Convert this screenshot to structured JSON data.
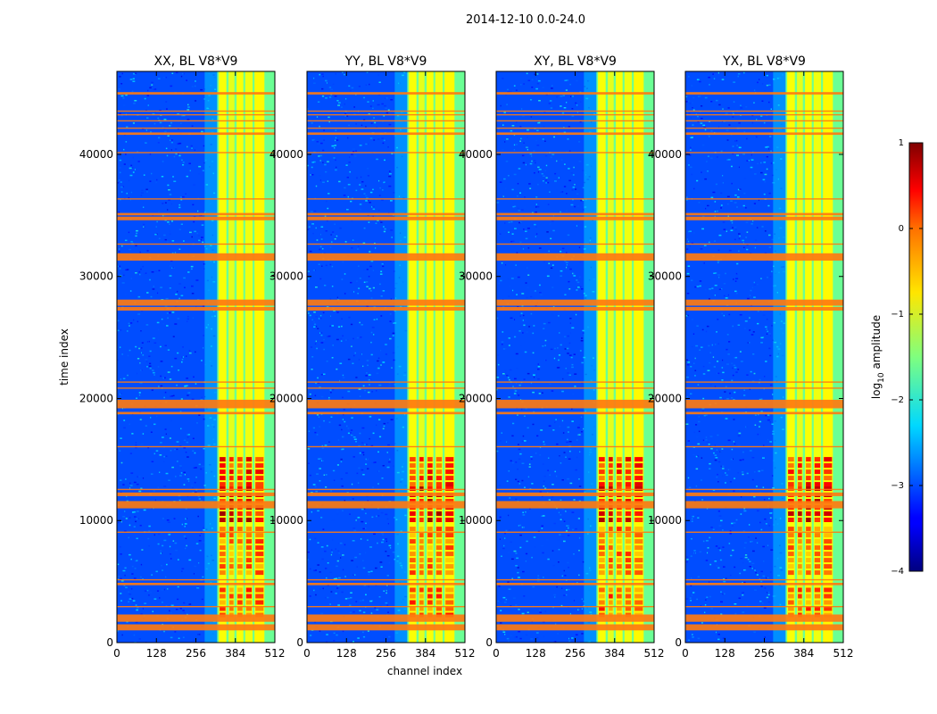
{
  "chart_data": {
    "type": "heatmap",
    "suptitle": "2014-12-10 0.0-24.0",
    "xlabel": "channel index",
    "ylabel": "time index",
    "xlim": [
      0,
      512
    ],
    "ylim": [
      0,
      46800
    ],
    "xticks": [
      0,
      128,
      256,
      384,
      512
    ],
    "yticks": [
      0,
      10000,
      20000,
      30000,
      40000
    ],
    "colormap": "jet",
    "colorbar": {
      "label": "log10 amplitude",
      "label_main": "log",
      "label_sub": "10",
      "label_rest": " amplitude",
      "range": [
        -4,
        1
      ],
      "ticks": [
        -4,
        -3,
        -2,
        -1,
        0,
        1
      ],
      "tick_labels": [
        "−4",
        "−3",
        "−2",
        "−1",
        "0",
        "1"
      ]
    },
    "panels": [
      {
        "title": "XX, BL V8*V9",
        "show_ylabel": true,
        "show_xlabel": false
      },
      {
        "title": "YY, BL V8*V9",
        "show_ylabel": false,
        "show_xlabel": true
      },
      {
        "title": "XY, BL V8*V9",
        "show_ylabel": false,
        "show_xlabel": false
      },
      {
        "title": "YX, BL V8*V9",
        "show_ylabel": false,
        "show_xlabel": false
      }
    ],
    "rfi_flagged_time_ranges": [
      [
        1000,
        1500
      ],
      [
        1700,
        2300
      ],
      [
        2900,
        3000
      ],
      [
        4700,
        4900
      ],
      [
        5100,
        5200
      ],
      [
        9000,
        9100
      ],
      [
        11000,
        11600
      ],
      [
        12000,
        12300
      ],
      [
        12500,
        12600
      ],
      [
        16000,
        16100
      ],
      [
        18700,
        18900
      ],
      [
        19200,
        19900
      ],
      [
        20800,
        20900
      ],
      [
        21300,
        21400
      ],
      [
        27200,
        27500
      ],
      [
        27600,
        28100
      ],
      [
        31300,
        31900
      ],
      [
        32600,
        32700
      ],
      [
        34600,
        34900
      ],
      [
        35000,
        35200
      ],
      [
        36300,
        36400
      ],
      [
        40100,
        40200
      ],
      [
        41600,
        41800
      ],
      [
        42100,
        42200
      ],
      [
        42700,
        42800
      ],
      [
        43200,
        43300
      ],
      [
        43500,
        43600
      ],
      [
        44900,
        45100
      ]
    ],
    "strong_signal_channel_range": [
      325,
      512
    ],
    "strong_signal_bands": [
      {
        "channels": [
          330,
          355
        ],
        "level": -0.9
      },
      {
        "channels": [
          362,
          381
        ],
        "level": -1.0
      },
      {
        "channels": [
          388,
          410
        ],
        "level": -0.9
      },
      {
        "channels": [
          416,
          440
        ],
        "level": -0.95
      },
      {
        "channels": [
          446,
          478
        ],
        "level": -0.85
      }
    ],
    "burst_time_ranges": [
      {
        "range": [
          2300,
          4500
        ],
        "level": 0.3
      },
      {
        "range": [
          5500,
          9500
        ],
        "level": 0.2
      },
      {
        "range": [
          9800,
          12800
        ],
        "level": 0.85
      },
      {
        "range": [
          12800,
          15200
        ],
        "level": 0.6
      }
    ],
    "background_level": -3.0
  }
}
